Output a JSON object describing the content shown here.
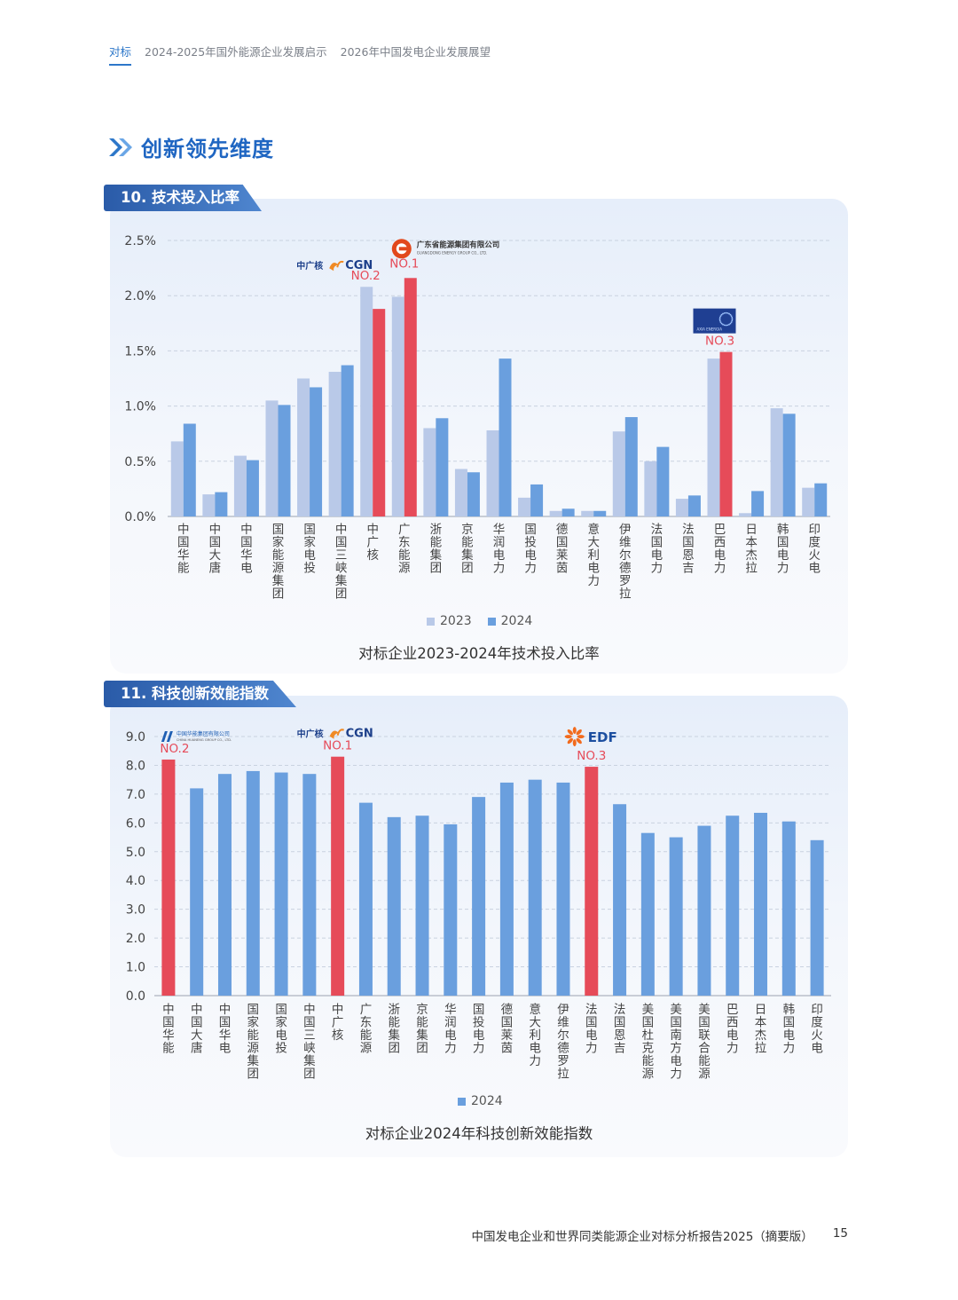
{
  "nav": {
    "items": [
      "对标",
      "2024-2025年国外能源企业发展启示",
      "2026年中国发电企业发展展望"
    ]
  },
  "section": {
    "title": "创新领先维度"
  },
  "chart1": {
    "tab": "10. 技术投入比率",
    "caption": "对标企业2023-2024年技术投入比率",
    "legend": [
      "2023",
      "2024"
    ],
    "badges": [
      {
        "text": "NO.2",
        "index": 6,
        "logo_text": "中广核",
        "logo_latin": "CGN"
      },
      {
        "text": "NO.1",
        "index": 7,
        "logo_text": "广东省能源集团有限公司",
        "logo_latin": "GUANGDONG ENERGY GROUP CO., LTD."
      },
      {
        "text": "NO.3",
        "index": 17,
        "logo_text": "AXIA ENERGIA"
      }
    ]
  },
  "chart2": {
    "tab": "11. 科技创新效能指数",
    "caption": "对标企业2024年科技创新效能指数",
    "legend": [
      "2024"
    ],
    "badges": [
      {
        "text": "NO.2",
        "index": 0,
        "logo_text": "中国华能集团有限公司",
        "logo_latin": "CHINA HUANENG GROUP CO., LTD."
      },
      {
        "text": "NO.1",
        "index": 6,
        "logo_text": "中广核",
        "logo_latin": "CGN"
      },
      {
        "text": "NO.3",
        "index": 15,
        "logo_text": "EDF"
      }
    ]
  },
  "colors": {
    "y2023": "#b9c9e8",
    "y2024": "#6a9fde",
    "highlight": "#e64b59",
    "badge": "#e64b59",
    "brand": "#1f66c2"
  },
  "chart_data": [
    {
      "type": "bar",
      "title": "对标企业2023-2024年技术投入比率",
      "categories": [
        "中国华能",
        "中国大唐",
        "中国华电",
        "国家能源集团",
        "国家电投",
        "中国三峡集团",
        "中广核",
        "广东能源",
        "浙能集团",
        "京能集团",
        "华润电力",
        "国投电力",
        "德国莱茵",
        "意大利电力",
        "伊维尔德罗拉",
        "法国电力",
        "法国恩吉",
        "巴西电力",
        "日本杰拉",
        "韩国电力",
        "印度火电"
      ],
      "series": [
        {
          "name": "2023",
          "values": [
            0.68,
            0.2,
            0.55,
            1.05,
            1.25,
            1.31,
            2.08,
            1.99,
            0.8,
            0.43,
            0.78,
            0.17,
            0.05,
            0.05,
            0.77,
            0.5,
            0.16,
            1.43,
            0.03,
            0.98,
            0.26
          ]
        },
        {
          "name": "2024",
          "values": [
            0.84,
            0.22,
            0.51,
            1.01,
            1.17,
            1.37,
            1.88,
            2.16,
            0.89,
            0.4,
            1.43,
            0.29,
            0.07,
            0.05,
            0.9,
            0.63,
            0.19,
            1.49,
            0.23,
            0.93,
            0.3
          ]
        }
      ],
      "highlight_series": "2024",
      "highlight_categories": [
        "中广核",
        "广东能源",
        "巴西电力"
      ],
      "ylim": [
        0,
        2.5
      ],
      "yticks": [
        "0.0%",
        "0.5%",
        "1.0%",
        "1.5%",
        "2.0%",
        "2.5%"
      ],
      "grid": true,
      "legend_position": "bottom"
    },
    {
      "type": "bar",
      "title": "对标企业2024年科技创新效能指数",
      "categories": [
        "中国华能",
        "中国大唐",
        "中国华电",
        "国家能源集团",
        "国家电投",
        "中国三峡集团",
        "中广核",
        "广东能源",
        "浙能集团",
        "京能集团",
        "华润电力",
        "国投电力",
        "德国莱茵",
        "意大利电力",
        "伊维尔德罗拉",
        "法国电力",
        "法国恩吉",
        "美国杜克能源",
        "美国南方电力",
        "美国联合能源",
        "巴西电力",
        "日本杰拉",
        "韩国电力",
        "印度火电"
      ],
      "series": [
        {
          "name": "2024",
          "values": [
            8.2,
            7.2,
            7.7,
            7.8,
            7.75,
            7.7,
            8.3,
            6.7,
            6.2,
            6.25,
            5.95,
            6.9,
            7.4,
            7.5,
            7.4,
            7.95,
            6.65,
            5.65,
            5.5,
            5.9,
            6.25,
            6.35,
            6.05,
            5.4
          ]
        }
      ],
      "highlight_categories": [
        "中国华能",
        "中广核",
        "法国电力"
      ],
      "ylim": [
        0,
        9
      ],
      "yticks": [
        "0.0",
        "1.0",
        "2.0",
        "3.0",
        "4.0",
        "5.0",
        "6.0",
        "7.0",
        "8.0",
        "9.0"
      ],
      "grid": true,
      "legend_position": "bottom"
    }
  ],
  "footer": {
    "title": "中国发电企业和世界同类能源企业对标分析报告2025（摘要版）",
    "page": "15"
  }
}
